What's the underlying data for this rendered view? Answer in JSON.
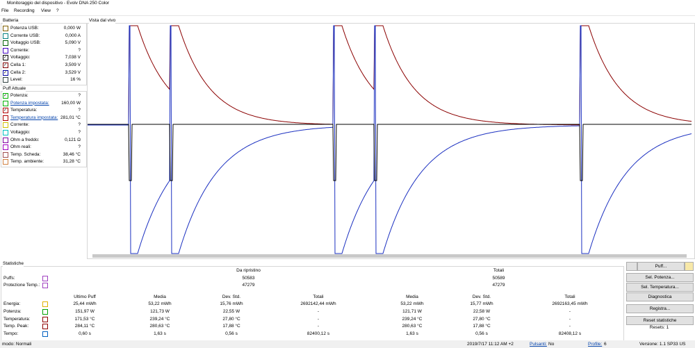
{
  "window": {
    "title": "Monitoraggio del dispositivo - Evolv DNA 250 Color",
    "menu": [
      "File",
      "Recording",
      "View",
      "?"
    ]
  },
  "battery": {
    "title": "Batteria",
    "rows": [
      {
        "label": "Potenza USB:",
        "value": "0,000 W",
        "color": "#806000",
        "checked": false
      },
      {
        "label": "Corrente USB:",
        "value": "0,000 A",
        "color": "#008080",
        "checked": false
      },
      {
        "label": "Voltaggio USB:",
        "value": "5,090 V",
        "color": "#006000",
        "checked": false
      },
      {
        "label": "Corrente:",
        "value": "?",
        "color": "#4000c0",
        "checked": false
      },
      {
        "label": "Voltaggio:",
        "value": "7,038 V",
        "color": "#000000",
        "checked": true
      },
      {
        "label": "Cella 1:",
        "value": "3,509 V",
        "color": "#800000",
        "checked": true
      },
      {
        "label": "Cella 2:",
        "value": "3,529 V",
        "color": "#0000a0",
        "checked": true
      },
      {
        "label": "Level:",
        "value": "16 %",
        "color": "#304040",
        "checked": false
      }
    ]
  },
  "puff": {
    "title": "Puff Attuale",
    "rows": [
      {
        "label": "Potenza:",
        "value": "?",
        "color": "#00b000",
        "checked": true,
        "link": false
      },
      {
        "label": "Potenza impostata:",
        "value": "160,00 W",
        "color": "#00b000",
        "checked": false,
        "link": true
      },
      {
        "label": "Temperatura:",
        "value": "?",
        "color": "#b00000",
        "checked": true,
        "link": false
      },
      {
        "label": "Temperatura impostata:",
        "value": "281,01 °C",
        "color": "#b00000",
        "checked": false,
        "link": true
      },
      {
        "label": "Corrente:",
        "value": "?",
        "color": "#d0c000",
        "checked": false,
        "link": false
      },
      {
        "label": "Voltaggio:",
        "value": "?",
        "color": "#00c0c0",
        "checked": false,
        "link": false
      },
      {
        "label": "Ohm a freddo:",
        "value": "0,121 Ω",
        "color": "#8000a0",
        "checked": false,
        "link": false
      },
      {
        "label": "Ohm reali:",
        "value": "?",
        "color": "#a000c0",
        "checked": false,
        "link": false
      },
      {
        "label": "Temp. Scheda:",
        "value": "38,46 °C",
        "color": "#a05050",
        "checked": false,
        "link": false
      },
      {
        "label": "Temp. ambiente:",
        "value": "31,28 °C",
        "color": "#d08040",
        "checked": false,
        "link": false
      }
    ]
  },
  "chart": {
    "title": "Vista dal vivo"
  },
  "stats": {
    "title": "Statistiche",
    "since_reset": "Da ripristino",
    "totals": "Totali",
    "counters": [
      {
        "label": "Puffs:",
        "color": "#a040c0",
        "since_reset": "50583",
        "totals": "50589"
      },
      {
        "label": "Protezione Temp.:",
        "color": "#a040c0",
        "since_reset": "47279",
        "totals": "47279"
      }
    ],
    "columns": [
      "Ultimo Puff",
      "Media",
      "Dev. Std.",
      "Totali",
      "Media",
      "Dev. Std.",
      "Totali"
    ],
    "rows": [
      {
        "label": "Energia:",
        "color": "#e0b000",
        "cells": [
          "25,44 mWh",
          "53,22 mWh",
          "15,76 mWh",
          "2692142,44 mWh",
          "53,22 mWh",
          "15,77 mWh",
          "2692163,45 mWh"
        ]
      },
      {
        "label": "Potenza:",
        "color": "#00a000",
        "cells": [
          "151,97 W",
          "121,73 W",
          "22,55 W",
          "-",
          "121,71 W",
          "22,58 W",
          "-"
        ]
      },
      {
        "label": "Temperatura:",
        "color": "#900000",
        "cells": [
          "171,53 °C",
          "239,24 °C",
          "27,80 °C",
          "-",
          "239,24 °C",
          "27,80 °C",
          "-"
        ]
      },
      {
        "label": "Temp. Peak:",
        "color": "#900000",
        "cells": [
          "284,11 °C",
          "280,63 °C",
          "17,88 °C",
          "-",
          "280,63 °C",
          "17,88 °C",
          "-"
        ]
      },
      {
        "label": "Tempo:",
        "color": "#0060c0",
        "cells": [
          "0,60 s",
          "1,63 s",
          "0,56 s",
          "82400,12 s",
          "1,63 s",
          "0,56 s",
          "82408,12 s"
        ]
      }
    ]
  },
  "buttons": [
    "Puff...",
    "Sel. Potenza...",
    "Sel. Temperatura...",
    "Diagnostica",
    "Registra...",
    "Reset statistiche"
  ],
  "resets": "Resets: 1",
  "status": {
    "mode": "modo: Normali",
    "datetime": "2019/7/17 11:12 AM +2",
    "buttons_label": "Pulsanti:",
    "buttons_value": "No",
    "profile_label": "Profile:",
    "profile_value": "6",
    "version": "Versione: 1.1 SP33 US"
  }
}
